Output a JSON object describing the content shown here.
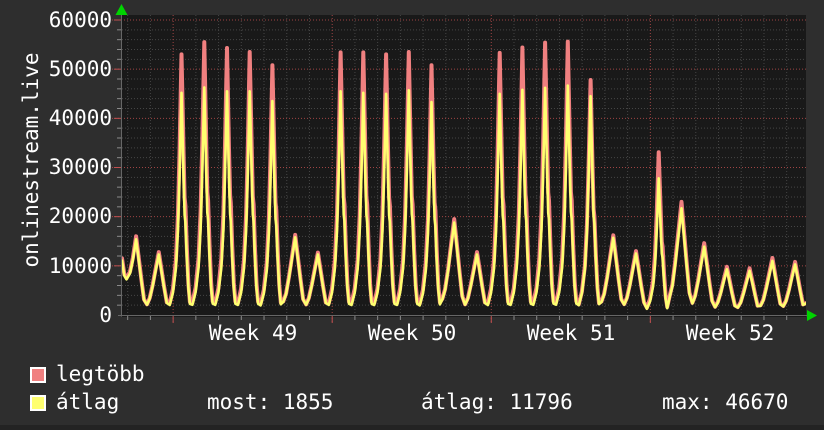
{
  "chart_data": {
    "type": "line",
    "title": "",
    "ylabel": "onlinestream.live",
    "ylim": [
      0,
      60000
    ],
    "y_major_step": 10000,
    "y_minor_step": 2000,
    "y_tick_labels": [
      "60000",
      "50000",
      "40000",
      "30000",
      "20000",
      "10000",
      "0"
    ],
    "x_tick_labels": [
      "Week 49",
      "Week 50",
      "Week 51",
      "Week 52"
    ],
    "days_total": 30.1,
    "week_start_day": 2.25,
    "grid": true,
    "night_low": 2200,
    "series": [
      {
        "name": "legtöbb",
        "color": "#f08080",
        "daily_peaks": [
          16000,
          12800,
          53000,
          55500,
          54300,
          53500,
          50800,
          16300,
          12700,
          53400,
          53400,
          53000,
          53500,
          50800,
          19500,
          12800,
          53300,
          54400,
          55400,
          55600,
          47800,
          16200,
          13000,
          33100,
          23000,
          14600,
          9800,
          9500,
          11600,
          10800
        ]
      },
      {
        "name": "átlag",
        "color": "#ffff70",
        "daily_peaks": [
          15400,
          12300,
          45200,
          46300,
          45500,
          45500,
          43500,
          15800,
          12300,
          45500,
          45200,
          45000,
          45700,
          43300,
          18800,
          12300,
          45000,
          45800,
          46200,
          46670,
          44500,
          15700,
          12500,
          27800,
          21700,
          13900,
          9300,
          9000,
          11000,
          10300
        ]
      }
    ],
    "legend": {
      "entries": [
        {
          "label": "legtöbb",
          "color": "#f08080"
        },
        {
          "label": "átlag",
          "color": "#ffff70"
        }
      ],
      "stats": [
        {
          "text": "most: 1855"
        },
        {
          "text": "átlag: 11796"
        },
        {
          "text": "max: 46670"
        }
      ]
    },
    "colors": {
      "outer_bg": "#2e2e2e",
      "plot_bg": "#191919",
      "minor_grid": "#454545",
      "major_grid": "#9f4444",
      "axis": "#666666",
      "tick": "#8a8a8a",
      "tick_major": "#c05050",
      "arrow": "#00d400",
      "text": "#ffffff"
    }
  }
}
